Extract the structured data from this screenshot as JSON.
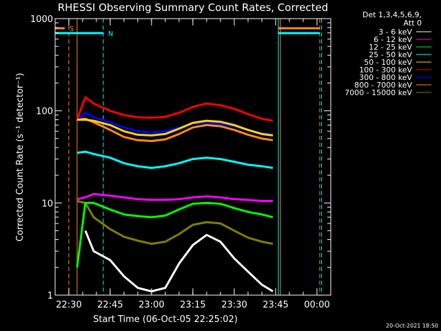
{
  "chart_data": {
    "type": "line",
    "title": "RHESSI Observing Summary Count Rates, Corrected",
    "xlabel": "Start Time (06-Oct-05 22:25:02)",
    "ylabel": "Corrected Count Rate (s⁻¹ detector⁻¹)",
    "y_scale": "log",
    "ylim": [
      1,
      1000
    ],
    "xlim": [
      "22:25:02",
      "00:05:00"
    ],
    "x_ticks": [
      "22:30",
      "22:45",
      "23:00",
      "23:15",
      "23:30",
      "23:45",
      "00:00"
    ],
    "y_ticks": [
      "1",
      "10",
      "100",
      "1000"
    ],
    "grid": false,
    "legend_header": [
      "Det 1,3,4,5,6,9,",
      "Att 0"
    ],
    "legend_position": "right",
    "timestamp": "20-Oct-2021 18:50",
    "flags": [
      {
        "label": "S",
        "color": "#ff8c1a",
        "x_start": "22:25:02",
        "x_end": "22:28:30",
        "row": 1
      },
      {
        "label": "N",
        "color": "#00ffff",
        "x_start": "22:25:02",
        "x_end": "22:42:30",
        "row": 2
      }
    ],
    "flags_right": [
      {
        "color": "#ff8c1a",
        "x_start": "23:46:00",
        "x_end": "00:01:00",
        "row": 1
      },
      {
        "color": "#00ffff",
        "x_start": "23:46:00",
        "x_end": "00:01:00",
        "row": 2
      }
    ],
    "vertical_lines": [
      {
        "x": "22:25:02",
        "color": "#00ffff",
        "style": "solid"
      },
      {
        "x": "22:30:00",
        "color": "#ff8c1a",
        "style": "dashed"
      },
      {
        "x": "22:33:00",
        "color": "#ff8c1a",
        "style": "solid"
      },
      {
        "x": "22:42:30",
        "color": "#00ffff",
        "style": "dashed"
      },
      {
        "x": "23:46:00",
        "color": "#00ffff",
        "style": "solid"
      },
      {
        "x": "23:46:45",
        "color": "#ff8c1a",
        "style": "solid"
      },
      {
        "x": "00:01:00",
        "color": "#ff8c1a",
        "style": "dashed"
      },
      {
        "x": "00:01:40",
        "color": "#00ffff",
        "style": "dashed"
      }
    ],
    "x": [
      "22:33",
      "22:36",
      "22:39",
      "22:45",
      "22:50",
      "22:55",
      "23:00",
      "23:05",
      "23:10",
      "23:15",
      "23:20",
      "23:25",
      "23:30",
      "23:35",
      "23:40",
      "23:44"
    ],
    "series": [
      {
        "name": "3 - 6 keV",
        "color": "#ffffff",
        "values": [
          null,
          5,
          3.0,
          2.4,
          1.6,
          1.2,
          1.1,
          1.2,
          2.2,
          3.5,
          4.5,
          3.8,
          2.5,
          1.8,
          1.3,
          1.1
        ]
      },
      {
        "name": "6 - 12 keV",
        "color": "#ff00ff",
        "values": [
          11,
          11.5,
          12.5,
          12,
          11.5,
          11,
          10.8,
          10.8,
          11,
          11.5,
          11.8,
          11.5,
          11,
          10.8,
          10.5,
          10.5
        ]
      },
      {
        "name": "12 - 25 keV",
        "color": "#00ff00",
        "values": [
          2,
          10,
          10,
          8.5,
          7.5,
          7.2,
          7.0,
          7.3,
          8.5,
          9.8,
          10,
          9.8,
          8.8,
          8,
          7.5,
          7
        ]
      },
      {
        "name": "25 - 50 keV",
        "color": "#00ffff",
        "values": [
          35,
          36,
          34,
          31,
          27,
          25,
          24,
          25,
          27,
          30,
          31,
          30,
          28,
          26,
          25,
          24
        ]
      },
      {
        "name": "50 - 100 keV",
        "color": "#ffd700",
        "values": [
          80,
          80,
          78,
          70,
          60,
          55,
          54,
          56,
          64,
          74,
          78,
          76,
          70,
          62,
          56,
          54
        ]
      },
      {
        "name": "100 - 300 keV",
        "color": "#ff0000",
        "values": [
          80,
          140,
          120,
          100,
          90,
          85,
          84,
          86,
          95,
          110,
          120,
          115,
          105,
          92,
          82,
          78
        ]
      },
      {
        "name": "300 - 800 keV",
        "color": "#0000ff",
        "values": [
          80,
          95,
          85,
          75,
          66,
          60,
          58,
          60,
          66,
          72,
          74,
          72,
          68,
          62,
          57,
          55
        ]
      },
      {
        "name": "800 - 7000 keV",
        "color": "#ff8c1a",
        "values": [
          80,
          82,
          75,
          62,
          52,
          48,
          47,
          49,
          56,
          66,
          70,
          68,
          62,
          55,
          50,
          48
        ]
      },
      {
        "name": "7000 - 15000 keV",
        "color": "#808000",
        "values": [
          10.5,
          10,
          7,
          5.2,
          4.3,
          3.9,
          3.6,
          3.8,
          4.6,
          5.8,
          6.2,
          6.0,
          5.0,
          4.2,
          3.8,
          3.6
        ]
      }
    ]
  }
}
